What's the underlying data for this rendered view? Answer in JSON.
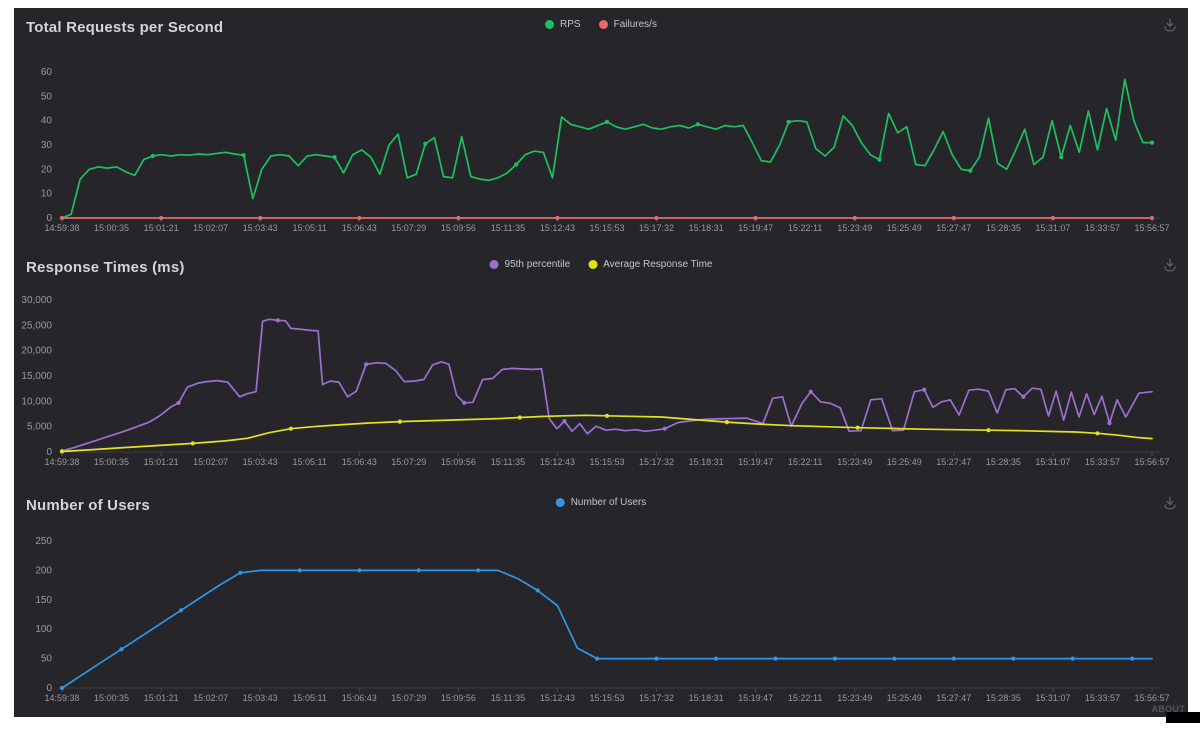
{
  "page": {
    "about_label": "ABOUT"
  },
  "icons": {
    "download": "download-icon"
  },
  "chart_data": [
    {
      "type": "line",
      "title": "Total Requests per Second",
      "xlabel": "",
      "ylabel": "",
      "ylim": [
        0,
        60
      ],
      "grid": false,
      "legend_position": "top-center",
      "ytick_labels": [
        "0",
        "10",
        "20",
        "30",
        "40",
        "50",
        "60"
      ],
      "xtick_labels": [
        "14:59:38",
        "15:00:35",
        "15:01:21",
        "15:02:07",
        "15:03:43",
        "15:05:11",
        "15:06:43",
        "15:07:29",
        "15:09:56",
        "15:11:35",
        "15:12:43",
        "15:15:53",
        "15:17:32",
        "15:18:31",
        "15:19:47",
        "15:22:11",
        "15:23:49",
        "15:25:49",
        "15:27:47",
        "15:28:35",
        "15:31:07",
        "15:33:57",
        "15:56:57"
      ],
      "series": [
        {
          "name": "RPS",
          "color": "#1dc05e",
          "marker_every": 10,
          "values": [
            0,
            1.5,
            16,
            20,
            21,
            20.5,
            21,
            19,
            17.5,
            24,
            25.5,
            26,
            25.5,
            26,
            25.8,
            26.3,
            26,
            26.5,
            27,
            26.3,
            25.8,
            8,
            20,
            25.5,
            26,
            25.5,
            21.5,
            25.5,
            26,
            25.5,
            25,
            18.5,
            26,
            28,
            25,
            18,
            30,
            34.5,
            16.5,
            18,
            30.5,
            33,
            17,
            16.5,
            33.5,
            17,
            16,
            15.5,
            16.5,
            18.5,
            22,
            26,
            27.5,
            27,
            16.5,
            41.5,
            38.5,
            37.5,
            36.5,
            38,
            39.5,
            37.5,
            36.5,
            37.5,
            38.5,
            37,
            36.5,
            37.5,
            38,
            37,
            38.5,
            37.5,
            36.5,
            38,
            37.5,
            38,
            31,
            23.5,
            23,
            30,
            39.5,
            40,
            39.5,
            28.5,
            25.5,
            29,
            42,
            38,
            31,
            26,
            24,
            43,
            35,
            37.5,
            22,
            21.5,
            28,
            35.5,
            26,
            20,
            19.5,
            25,
            41,
            22.5,
            20,
            28,
            36.5,
            22,
            25,
            40,
            25,
            38,
            27,
            44,
            28,
            45,
            32,
            57,
            40,
            31,
            31
          ]
        },
        {
          "name": "Failures/s",
          "color": "#e8696b",
          "marker_every": 2,
          "values": [
            0,
            0,
            0,
            0,
            0,
            0,
            0,
            0,
            0,
            0,
            0,
            0,
            0,
            0,
            0,
            0,
            0,
            0,
            0,
            0,
            0,
            0,
            0
          ]
        }
      ]
    },
    {
      "type": "line",
      "title": "Response Times (ms)",
      "xlabel": "",
      "ylabel": "",
      "ylim": [
        0,
        30000
      ],
      "grid": false,
      "legend_position": "top-center",
      "ytick_labels": [
        "0",
        "5,000",
        "10,000",
        "15,000",
        "20,000",
        "25,000",
        "30,000"
      ],
      "xtick_labels": [
        "14:59:38",
        "15:00:35",
        "15:01:21",
        "15:02:07",
        "15:03:43",
        "15:05:11",
        "15:06:43",
        "15:07:29",
        "15:09:56",
        "15:11:35",
        "15:12:43",
        "15:15:53",
        "15:17:32",
        "15:18:31",
        "15:19:47",
        "15:22:11",
        "15:23:49",
        "15:25:49",
        "15:27:47",
        "15:28:35",
        "15:31:07",
        "15:33:57",
        "15:56:57"
      ],
      "series": [
        {
          "name": "95th percentile",
          "color": "#9c6fd1",
          "marker_every": 11,
          "points": [
            [
              0,
              200
            ],
            [
              0.01,
              800
            ],
            [
              0.02,
              1500
            ],
            [
              0.03,
              2200
            ],
            [
              0.04,
              2900
            ],
            [
              0.05,
              3600
            ],
            [
              0.06,
              4300
            ],
            [
              0.07,
              5100
            ],
            [
              0.08,
              5900
            ],
            [
              0.09,
              7200
            ],
            [
              0.1,
              8900
            ],
            [
              0.107,
              9700
            ],
            [
              0.115,
              12800
            ],
            [
              0.125,
              13600
            ],
            [
              0.133,
              13900
            ],
            [
              0.142,
              14100
            ],
            [
              0.152,
              13800
            ],
            [
              0.163,
              10900
            ],
            [
              0.17,
              11500
            ],
            [
              0.178,
              11900
            ],
            [
              0.184,
              25800
            ],
            [
              0.19,
              26200
            ],
            [
              0.198,
              26000
            ],
            [
              0.205,
              25900
            ],
            [
              0.21,
              24400
            ],
            [
              0.22,
              24200
            ],
            [
              0.228,
              24000
            ],
            [
              0.235,
              23900
            ],
            [
              0.239,
              13300
            ],
            [
              0.246,
              14000
            ],
            [
              0.254,
              13800
            ],
            [
              0.262,
              10900
            ],
            [
              0.27,
              12000
            ],
            [
              0.279,
              17300
            ],
            [
              0.288,
              17600
            ],
            [
              0.297,
              17500
            ],
            [
              0.306,
              16100
            ],
            [
              0.314,
              13900
            ],
            [
              0.323,
              14000
            ],
            [
              0.332,
              14300
            ],
            [
              0.34,
              17200
            ],
            [
              0.348,
              17800
            ],
            [
              0.355,
              17300
            ],
            [
              0.362,
              11200
            ],
            [
              0.369,
              9700
            ],
            [
              0.377,
              9800
            ],
            [
              0.386,
              14300
            ],
            [
              0.395,
              14500
            ],
            [
              0.404,
              16300
            ],
            [
              0.413,
              16500
            ],
            [
              0.422,
              16400
            ],
            [
              0.431,
              16300
            ],
            [
              0.44,
              16400
            ],
            [
              0.447,
              6600
            ],
            [
              0.454,
              4600
            ],
            [
              0.461,
              6100
            ],
            [
              0.468,
              4100
            ],
            [
              0.475,
              5600
            ],
            [
              0.482,
              3600
            ],
            [
              0.49,
              5100
            ],
            [
              0.499,
              4300
            ],
            [
              0.508,
              4500
            ],
            [
              0.517,
              4200
            ],
            [
              0.526,
              4400
            ],
            [
              0.535,
              4100
            ],
            [
              0.544,
              4300
            ],
            [
              0.553,
              4600
            ],
            [
              0.565,
              5800
            ],
            [
              0.578,
              6200
            ],
            [
              0.592,
              6500
            ],
            [
              0.61,
              6600
            ],
            [
              0.628,
              6700
            ],
            [
              0.643,
              5600
            ],
            [
              0.652,
              10600
            ],
            [
              0.661,
              10900
            ],
            [
              0.669,
              5100
            ],
            [
              0.679,
              9600
            ],
            [
              0.687,
              11900
            ],
            [
              0.696,
              9900
            ],
            [
              0.705,
              9600
            ],
            [
              0.714,
              8700
            ],
            [
              0.722,
              4100
            ],
            [
              0.733,
              4200
            ],
            [
              0.742,
              10300
            ],
            [
              0.752,
              10500
            ],
            [
              0.762,
              4200
            ],
            [
              0.772,
              4300
            ],
            [
              0.782,
              11900
            ],
            [
              0.791,
              12300
            ],
            [
              0.799,
              8800
            ],
            [
              0.807,
              9900
            ],
            [
              0.815,
              10300
            ],
            [
              0.823,
              7300
            ],
            [
              0.832,
              12200
            ],
            [
              0.841,
              12400
            ],
            [
              0.85,
              12000
            ],
            [
              0.858,
              7700
            ],
            [
              0.866,
              12300
            ],
            [
              0.874,
              12500
            ],
            [
              0.882,
              10900
            ],
            [
              0.89,
              12600
            ],
            [
              0.898,
              12400
            ],
            [
              0.905,
              7100
            ],
            [
              0.912,
              12000
            ],
            [
              0.919,
              6300
            ],
            [
              0.926,
              11800
            ],
            [
              0.933,
              6900
            ],
            [
              0.94,
              11500
            ],
            [
              0.947,
              7400
            ],
            [
              0.954,
              11000
            ],
            [
              0.961,
              5700
            ],
            [
              0.968,
              10300
            ],
            [
              0.976,
              6900
            ],
            [
              0.988,
              11600
            ],
            [
              1,
              11900
            ]
          ]
        },
        {
          "name": "Average Response Time",
          "color": "#e2e221",
          "marker_every": 4,
          "points": [
            [
              0,
              100
            ],
            [
              0.03,
              500
            ],
            [
              0.06,
              900
            ],
            [
              0.09,
              1300
            ],
            [
              0.12,
              1700
            ],
            [
              0.15,
              2200
            ],
            [
              0.17,
              2700
            ],
            [
              0.19,
              3800
            ],
            [
              0.21,
              4600
            ],
            [
              0.23,
              5000
            ],
            [
              0.25,
              5300
            ],
            [
              0.28,
              5700
            ],
            [
              0.31,
              6000
            ],
            [
              0.34,
              6200
            ],
            [
              0.37,
              6400
            ],
            [
              0.4,
              6600
            ],
            [
              0.42,
              6800
            ],
            [
              0.44,
              7000
            ],
            [
              0.46,
              7150
            ],
            [
              0.48,
              7250
            ],
            [
              0.5,
              7150
            ],
            [
              0.52,
              7050
            ],
            [
              0.55,
              6900
            ],
            [
              0.58,
              6400
            ],
            [
              0.61,
              5900
            ],
            [
              0.64,
              5500
            ],
            [
              0.67,
              5200
            ],
            [
              0.7,
              5000
            ],
            [
              0.73,
              4800
            ],
            [
              0.76,
              4650
            ],
            [
              0.79,
              4500
            ],
            [
              0.82,
              4400
            ],
            [
              0.85,
              4300
            ],
            [
              0.88,
              4200
            ],
            [
              0.91,
              4050
            ],
            [
              0.93,
              3950
            ],
            [
              0.95,
              3700
            ],
            [
              0.97,
              3300
            ],
            [
              0.985,
              2900
            ],
            [
              1,
              2650
            ]
          ]
        }
      ]
    },
    {
      "type": "line",
      "title": "Number of Users",
      "xlabel": "",
      "ylabel": "",
      "ylim": [
        0,
        250
      ],
      "grid": false,
      "legend_position": "top-center",
      "ytick_labels": [
        "0",
        "50",
        "100",
        "150",
        "200",
        "250"
      ],
      "xtick_labels": [
        "14:59:38",
        "15:00:35",
        "15:01:21",
        "15:02:07",
        "15:03:43",
        "15:05:11",
        "15:06:43",
        "15:07:29",
        "15:09:56",
        "15:11:35",
        "15:12:43",
        "15:15:53",
        "15:17:32",
        "15:18:31",
        "15:19:47",
        "15:22:11",
        "15:23:49",
        "15:25:49",
        "15:27:47",
        "15:28:35",
        "15:31:07",
        "15:33:57",
        "15:56:57"
      ],
      "series": [
        {
          "name": "Number of Users",
          "color": "#2f96e8",
          "marker_every": 3,
          "values": [
            0,
            22,
            44,
            66,
            88,
            110,
            132,
            154,
            176,
            196,
            200,
            200,
            200,
            200,
            200,
            200,
            200,
            200,
            200,
            200,
            200,
            200,
            200,
            186,
            166,
            140,
            68,
            50,
            50,
            50,
            50,
            50,
            50,
            50,
            50,
            50,
            50,
            50,
            50,
            50,
            50,
            50,
            50,
            50,
            50,
            50,
            50,
            50,
            50,
            50,
            50,
            50,
            50,
            50,
            50,
            50
          ]
        }
      ]
    }
  ]
}
